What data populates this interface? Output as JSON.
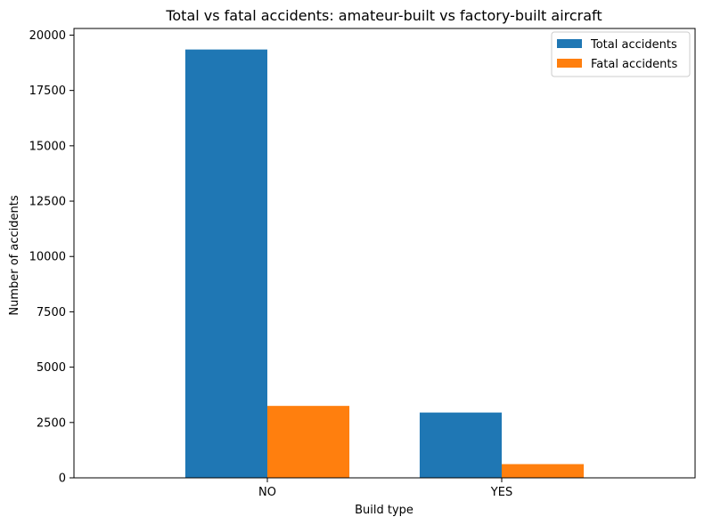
{
  "chart_data": {
    "type": "bar",
    "title": "Total vs fatal accidents: amateur-built vs factory-built aircraft",
    "xlabel": "Build type",
    "ylabel": "Number of accidents",
    "categories": [
      "NO",
      "YES"
    ],
    "series": [
      {
        "name": "Total accidents",
        "values": [
          19350,
          2950
        ],
        "color": "#1f77b4"
      },
      {
        "name": "Fatal accidents",
        "values": [
          3250,
          620
        ],
        "color": "#ff7f0e"
      }
    ],
    "ylim": [
      0,
      20300
    ],
    "yticks": [
      0,
      2500,
      5000,
      7500,
      10000,
      12500,
      15000,
      17500,
      20000
    ],
    "grid": false,
    "legend_position": "top-right"
  }
}
